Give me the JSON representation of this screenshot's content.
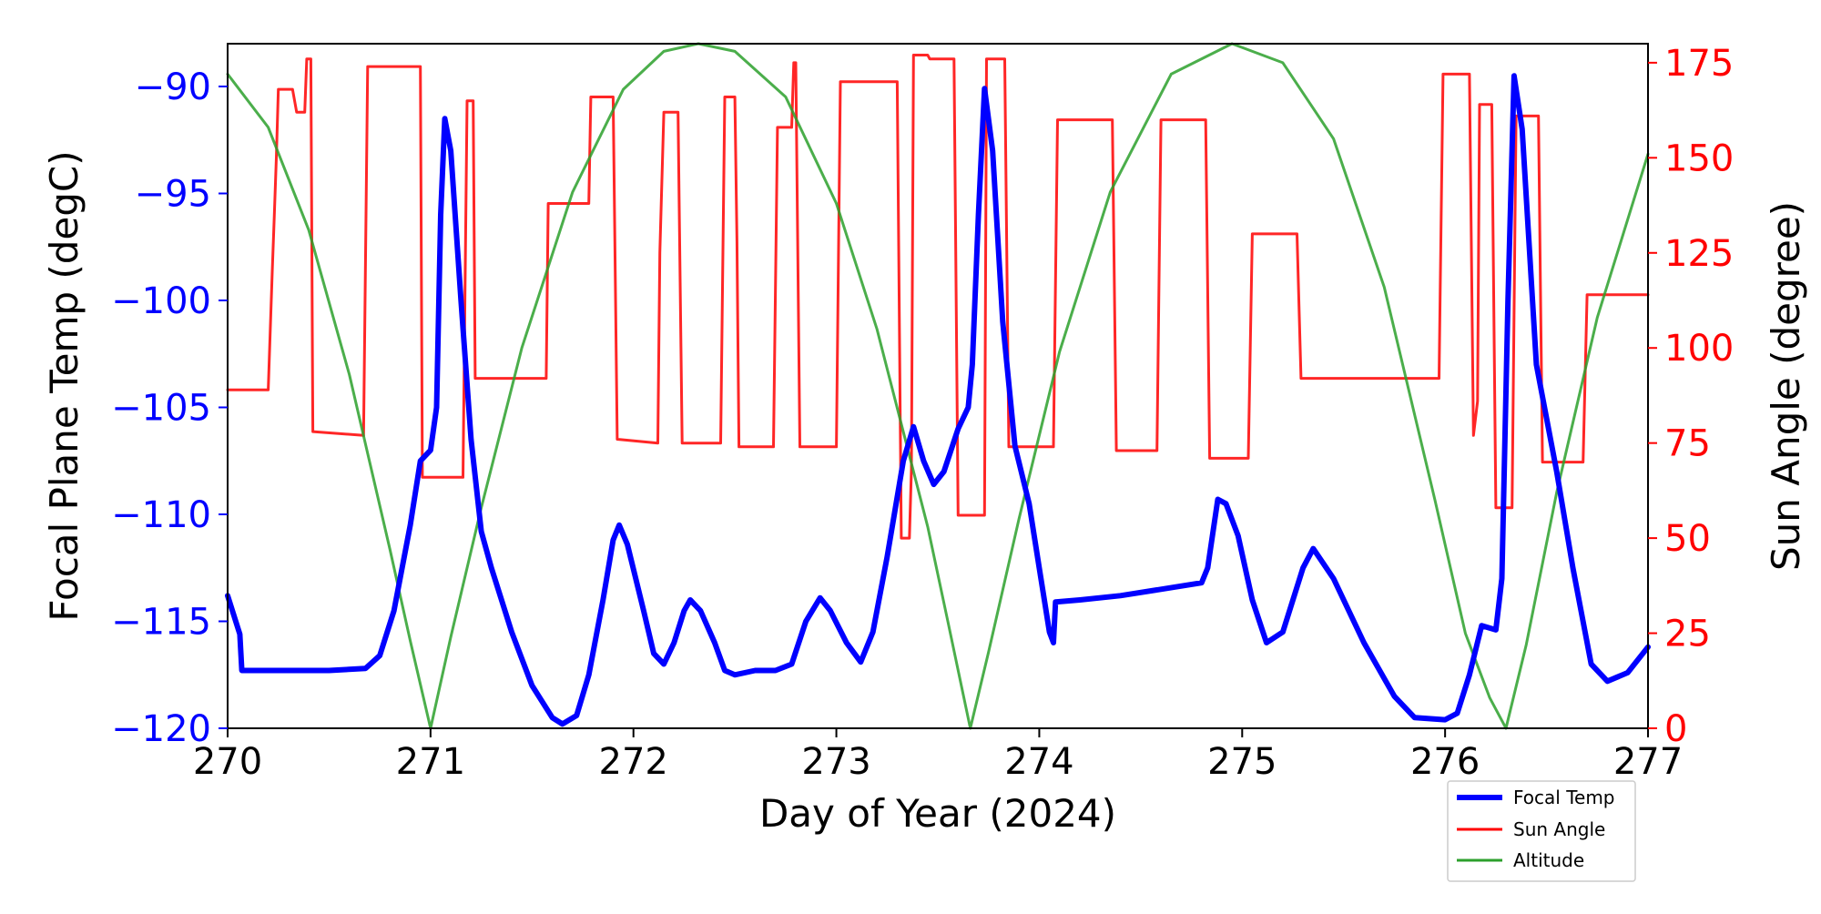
{
  "chart_data": {
    "type": "line",
    "xlabel": "Day of Year (2024)",
    "ylabel_left": "Focal Plane Temp (degC)",
    "ylabel_right": "Sun Angle (degree)",
    "xlim": [
      270,
      277
    ],
    "ylim_left": [
      -120,
      -88
    ],
    "ylim_right": [
      0,
      180
    ],
    "x_ticks": [
      "270",
      "271",
      "272",
      "273",
      "274",
      "275",
      "276",
      "277"
    ],
    "y_left_ticks": [
      "−90",
      "−95",
      "−100",
      "−105",
      "−110",
      "−115",
      "−120"
    ],
    "y_right_ticks": [
      "0",
      "25",
      "50",
      "75",
      "100",
      "125",
      "150",
      "175"
    ],
    "grid": false,
    "legend_position": "bottom-right",
    "colors": {
      "focal": "#0000ff",
      "sun": "#ff0000",
      "altitude": "#2ca02c",
      "left_axis": "#0000ff",
      "right_axis": "#ff0000"
    },
    "series": [
      {
        "name": "Focal Temp",
        "axis": "left",
        "points": [
          [
            270.0,
            -113.8
          ],
          [
            270.06,
            -115.6
          ],
          [
            270.07,
            -117.3
          ],
          [
            270.15,
            -117.3
          ],
          [
            270.3,
            -117.3
          ],
          [
            270.5,
            -117.3
          ],
          [
            270.68,
            -117.2
          ],
          [
            270.75,
            -116.6
          ],
          [
            270.82,
            -114.5
          ],
          [
            270.9,
            -110.5
          ],
          [
            270.95,
            -107.5
          ],
          [
            271.0,
            -107.0
          ],
          [
            271.03,
            -105.0
          ],
          [
            271.05,
            -96.0
          ],
          [
            271.07,
            -91.5
          ],
          [
            271.1,
            -93.0
          ],
          [
            271.15,
            -100.0
          ],
          [
            271.2,
            -106.5
          ],
          [
            271.25,
            -110.8
          ],
          [
            271.3,
            -112.5
          ],
          [
            271.4,
            -115.5
          ],
          [
            271.5,
            -118.0
          ],
          [
            271.6,
            -119.5
          ],
          [
            271.65,
            -119.8
          ],
          [
            271.72,
            -119.4
          ],
          [
            271.78,
            -117.5
          ],
          [
            271.85,
            -114.0
          ],
          [
            271.9,
            -111.2
          ],
          [
            271.93,
            -110.5
          ],
          [
            271.97,
            -111.4
          ],
          [
            272.05,
            -114.5
          ],
          [
            272.1,
            -116.5
          ],
          [
            272.15,
            -117.0
          ],
          [
            272.2,
            -116.0
          ],
          [
            272.25,
            -114.5
          ],
          [
            272.28,
            -114.0
          ],
          [
            272.33,
            -114.5
          ],
          [
            272.4,
            -116.0
          ],
          [
            272.45,
            -117.3
          ],
          [
            272.5,
            -117.5
          ],
          [
            272.6,
            -117.3
          ],
          [
            272.7,
            -117.3
          ],
          [
            272.78,
            -117.0
          ],
          [
            272.85,
            -115.0
          ],
          [
            272.92,
            -113.9
          ],
          [
            272.97,
            -114.5
          ],
          [
            273.05,
            -116.0
          ],
          [
            273.12,
            -116.9
          ],
          [
            273.18,
            -115.5
          ],
          [
            273.25,
            -112.0
          ],
          [
            273.33,
            -107.5
          ],
          [
            273.38,
            -105.9
          ],
          [
            273.43,
            -107.5
          ],
          [
            273.48,
            -108.6
          ],
          [
            273.53,
            -108.0
          ],
          [
            273.6,
            -106.0
          ],
          [
            273.65,
            -105.0
          ],
          [
            273.67,
            -103.0
          ],
          [
            273.7,
            -96.0
          ],
          [
            273.73,
            -90.1
          ],
          [
            273.77,
            -93.0
          ],
          [
            273.82,
            -101.0
          ],
          [
            273.88,
            -106.8
          ],
          [
            273.95,
            -109.5
          ],
          [
            274.0,
            -112.5
          ],
          [
            274.05,
            -115.5
          ],
          [
            274.07,
            -116.0
          ],
          [
            274.08,
            -114.1
          ],
          [
            274.2,
            -114.0
          ],
          [
            274.4,
            -113.8
          ],
          [
            274.6,
            -113.5
          ],
          [
            274.8,
            -113.2
          ],
          [
            274.83,
            -112.5
          ],
          [
            274.88,
            -109.3
          ],
          [
            274.92,
            -109.5
          ],
          [
            274.98,
            -111.0
          ],
          [
            275.05,
            -114.0
          ],
          [
            275.12,
            -116.0
          ],
          [
            275.2,
            -115.5
          ],
          [
            275.3,
            -112.5
          ],
          [
            275.35,
            -111.6
          ],
          [
            275.45,
            -113.0
          ],
          [
            275.6,
            -116.0
          ],
          [
            275.75,
            -118.5
          ],
          [
            275.85,
            -119.5
          ],
          [
            276.0,
            -119.6
          ],
          [
            276.06,
            -119.3
          ],
          [
            276.12,
            -117.5
          ],
          [
            276.18,
            -115.2
          ],
          [
            276.25,
            -115.4
          ],
          [
            276.28,
            -113.0
          ],
          [
            276.31,
            -100.0
          ],
          [
            276.34,
            -89.5
          ],
          [
            276.38,
            -92.0
          ],
          [
            276.45,
            -103.0
          ],
          [
            276.55,
            -108.0
          ],
          [
            276.63,
            -112.5
          ],
          [
            276.72,
            -117.0
          ],
          [
            276.8,
            -117.8
          ],
          [
            276.9,
            -117.4
          ],
          [
            277.0,
            -116.2
          ]
        ]
      },
      {
        "name": "Sun Angle",
        "axis": "right",
        "points": [
          [
            270.0,
            89
          ],
          [
            270.2,
            89
          ],
          [
            270.22,
            120
          ],
          [
            270.23,
            135
          ],
          [
            270.24,
            150
          ],
          [
            270.25,
            168
          ],
          [
            270.32,
            168
          ],
          [
            270.34,
            162
          ],
          [
            270.38,
            162
          ],
          [
            270.39,
            176
          ],
          [
            270.41,
            176
          ],
          [
            270.42,
            78
          ],
          [
            270.67,
            77
          ],
          [
            270.69,
            174
          ],
          [
            270.95,
            174
          ],
          [
            270.96,
            66
          ],
          [
            271.16,
            66
          ],
          [
            271.18,
            165
          ],
          [
            271.21,
            165
          ],
          [
            271.22,
            92
          ],
          [
            271.57,
            92
          ],
          [
            271.58,
            138
          ],
          [
            271.78,
            138
          ],
          [
            271.79,
            166
          ],
          [
            271.9,
            166
          ],
          [
            271.92,
            76
          ],
          [
            272.12,
            75
          ],
          [
            272.13,
            125
          ],
          [
            272.15,
            162
          ],
          [
            272.22,
            162
          ],
          [
            272.24,
            75
          ],
          [
            272.43,
            75
          ],
          [
            272.45,
            166
          ],
          [
            272.5,
            166
          ],
          [
            272.51,
            128
          ],
          [
            272.52,
            74
          ],
          [
            272.69,
            74
          ],
          [
            272.71,
            158
          ],
          [
            272.78,
            158
          ],
          [
            272.79,
            175
          ],
          [
            272.8,
            175
          ],
          [
            272.82,
            74
          ],
          [
            273.0,
            74
          ],
          [
            273.02,
            170
          ],
          [
            273.3,
            170
          ],
          [
            273.32,
            50
          ],
          [
            273.36,
            50
          ],
          [
            273.37,
            68
          ],
          [
            273.38,
            177
          ],
          [
            273.45,
            177
          ],
          [
            273.46,
            176
          ],
          [
            273.58,
            176
          ],
          [
            273.6,
            56
          ],
          [
            273.73,
            56
          ],
          [
            273.74,
            176
          ],
          [
            273.83,
            176
          ],
          [
            273.85,
            74
          ],
          [
            274.07,
            74
          ],
          [
            274.09,
            160
          ],
          [
            274.36,
            160
          ],
          [
            274.38,
            73
          ],
          [
            274.58,
            73
          ],
          [
            274.6,
            160
          ],
          [
            274.82,
            160
          ],
          [
            274.84,
            71
          ],
          [
            275.03,
            71
          ],
          [
            275.05,
            130
          ],
          [
            275.27,
            130
          ],
          [
            275.29,
            92
          ],
          [
            275.57,
            92
          ],
          [
            275.6,
            92
          ],
          [
            275.95,
            92
          ],
          [
            275.97,
            92
          ],
          [
            275.99,
            172
          ],
          [
            276.12,
            172
          ],
          [
            276.14,
            77
          ],
          [
            276.16,
            86
          ],
          [
            276.17,
            164
          ],
          [
            276.23,
            164
          ],
          [
            276.25,
            58
          ],
          [
            276.33,
            58
          ],
          [
            276.35,
            161
          ],
          [
            276.46,
            161
          ],
          [
            276.48,
            70
          ],
          [
            276.68,
            70
          ],
          [
            276.7,
            114
          ],
          [
            277.0,
            114
          ]
        ]
      },
      {
        "name": "Altitude",
        "axis": "right",
        "points": [
          [
            270.0,
            172
          ],
          [
            270.2,
            158
          ],
          [
            270.4,
            131
          ],
          [
            270.6,
            93
          ],
          [
            270.8,
            47
          ],
          [
            270.9,
            23
          ],
          [
            271.0,
            0
          ],
          [
            271.1,
            24
          ],
          [
            271.25,
            58
          ],
          [
            271.45,
            100
          ],
          [
            271.7,
            141
          ],
          [
            271.95,
            168
          ],
          [
            272.15,
            178
          ],
          [
            272.32,
            180
          ],
          [
            272.5,
            178
          ],
          [
            272.75,
            166
          ],
          [
            273.0,
            138
          ],
          [
            273.2,
            105
          ],
          [
            273.45,
            53
          ],
          [
            273.55,
            28
          ],
          [
            273.66,
            0
          ],
          [
            273.75,
            20
          ],
          [
            273.9,
            55
          ],
          [
            274.1,
            99
          ],
          [
            274.35,
            141
          ],
          [
            274.65,
            172
          ],
          [
            274.95,
            180
          ],
          [
            275.2,
            175
          ],
          [
            275.45,
            155
          ],
          [
            275.7,
            116
          ],
          [
            275.95,
            60
          ],
          [
            276.1,
            25
          ],
          [
            276.22,
            8
          ],
          [
            276.3,
            0
          ],
          [
            276.4,
            22
          ],
          [
            276.55,
            62
          ],
          [
            276.75,
            108
          ],
          [
            277.0,
            151
          ]
        ]
      }
    ]
  }
}
